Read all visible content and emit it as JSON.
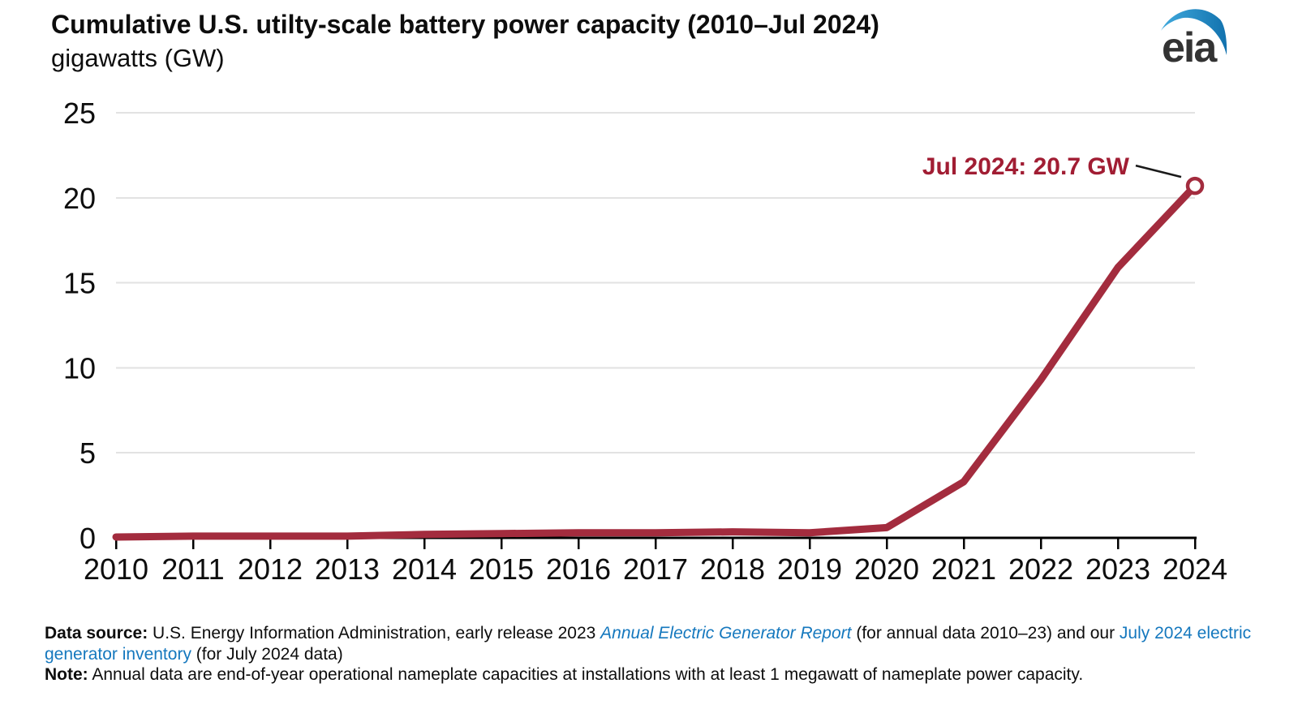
{
  "header": {
    "title": "Cumulative U.S. utilty-scale battery power capacity (2010–Jul 2024)",
    "subtitle": "gigawatts (GW)",
    "logo_text": "eia"
  },
  "chart_data": {
    "type": "line",
    "title": "Cumulative U.S. utilty-scale battery power capacity (2010–Jul 2024)",
    "ylabel": "gigawatts (GW)",
    "categories": [
      "2010",
      "2011",
      "2012",
      "2013",
      "2014",
      "2015",
      "2016",
      "2017",
      "2018",
      "2019",
      "2020",
      "2021",
      "2022",
      "2023",
      "Jul 2024"
    ],
    "x_tick_labels": [
      "2010",
      "2011",
      "2012",
      "2013",
      "2014",
      "2015",
      "2016",
      "2017",
      "2018",
      "2019",
      "2020",
      "2021",
      "2022",
      "2023",
      "2024"
    ],
    "values": [
      0.05,
      0.1,
      0.1,
      0.1,
      0.2,
      0.25,
      0.3,
      0.3,
      0.35,
      0.3,
      0.6,
      3.3,
      9.3,
      15.9,
      20.7
    ],
    "ylim": [
      0,
      25
    ],
    "yticks": [
      0,
      5,
      10,
      15,
      20,
      25
    ],
    "grid": true,
    "legend_position": "none",
    "annotation": {
      "text": "Jul 2024: 20.7 GW",
      "x": "Jul 2024",
      "y": 20.7
    },
    "last_point_marker": "open-circle",
    "colors": {
      "line": "#a32c3e",
      "annotation": "#a11d33",
      "gridline": "#e2e2e2",
      "axis": "#000000",
      "connector": "#1a1a1a"
    }
  },
  "footer": {
    "source_label": "Data source:",
    "source_text_1": " U.S. Energy Information Administration, early release 2023 ",
    "source_link_1": "Annual Electric Generator Report",
    "source_text_2": " (for annual data 2010–23) and our ",
    "source_link_2": "July 2024 electric generator inventory",
    "source_text_3": " (for July 2024 data)",
    "note_label": "Note:",
    "note_text": " Annual data are end-of-year operational nameplate capacities at installations with at least 1 megawatt of nameplate power capacity."
  }
}
